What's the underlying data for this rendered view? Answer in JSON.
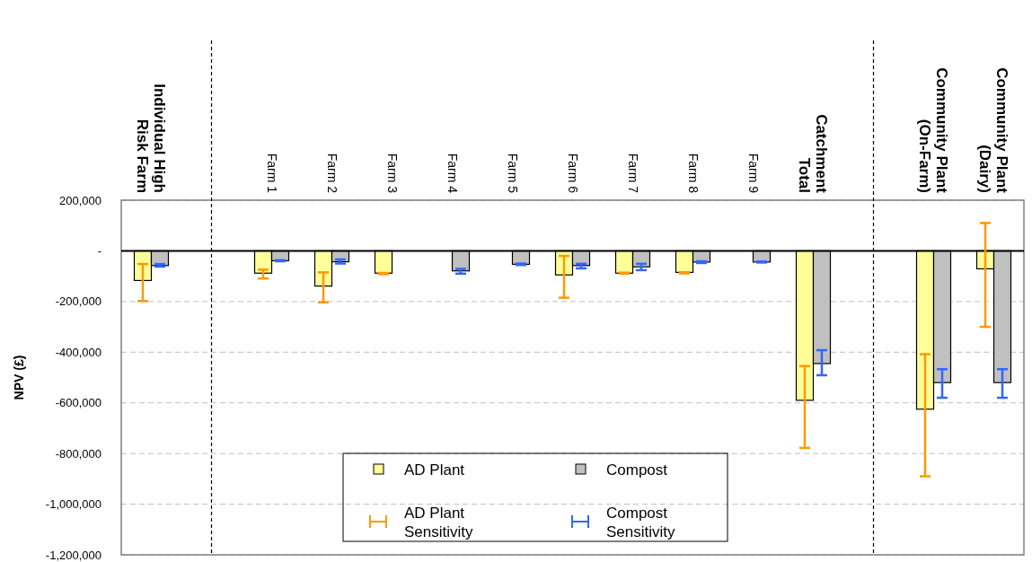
{
  "chart_data": {
    "type": "bar",
    "ylabel": "NPV (£)",
    "categories": [
      "Individual High Risk Farm",
      "Farm 1",
      "Farm 2",
      "Farm 3",
      "Farm 4",
      "Farm 5",
      "Farm 6",
      "Farm 7",
      "Farm 8",
      "Farm 9",
      "Catchment Total",
      "Community Plant (On-Farm)",
      "Community Plant (Dairy)"
    ],
    "series": [
      {
        "name": "AD Plant",
        "color": "#ffff99",
        "values": [
          -117000,
          -88000,
          -139000,
          -88000,
          0,
          0,
          -95000,
          -88000,
          -85000,
          0,
          -590000,
          -625000,
          -71000
        ],
        "errors": [
          [
            -198000,
            -52000
          ],
          [
            -109000,
            -74000
          ],
          [
            -203000,
            -85000
          ],
          [
            -92000,
            -87000
          ],
          null,
          null,
          [
            -185000,
            -20000
          ],
          [
            -90000,
            -86000
          ],
          [
            -89000,
            -84000
          ],
          null,
          [
            -778000,
            -455000
          ],
          [
            -890000,
            -408000
          ],
          [
            -300000,
            110000
          ]
        ]
      },
      {
        "name": "Compost",
        "color": "#c0c0c0",
        "values": [
          -58000,
          -39000,
          -43000,
          0,
          -79000,
          -53000,
          -58000,
          -63000,
          -44000,
          -44000,
          -445000,
          -520000,
          -520000
        ],
        "errors": [
          [
            -62000,
            -52000
          ],
          [
            -41000,
            -37000
          ],
          [
            -50000,
            -34000
          ],
          null,
          [
            -90000,
            -71000
          ],
          [
            -56000,
            -50000
          ],
          [
            -69000,
            -51000
          ],
          [
            -76000,
            -51000
          ],
          [
            -48000,
            -41000
          ],
          [
            -46000,
            -42000
          ],
          [
            -491000,
            -392000
          ],
          [
            -580000,
            -467000
          ],
          [
            -580000,
            -467000
          ]
        ]
      }
    ],
    "annotations": [
      "AD Plant Sensitivity",
      "Compost Sensitivity"
    ],
    "ylim": [
      -1200000,
      200000
    ],
    "yticks": [
      {
        "value": 200000,
        "label": "200,000"
      },
      {
        "value": 0,
        "label": "-"
      },
      {
        "value": -200000,
        "label": "-200,000"
      },
      {
        "value": -400000,
        "label": "-400,000"
      },
      {
        "value": -600000,
        "label": "-600,000"
      },
      {
        "value": -800000,
        "label": "-800,000"
      },
      {
        "value": -1000000,
        "label": "-1,000,000"
      },
      {
        "value": -1200000,
        "label": "-1,200,000"
      }
    ],
    "grid": "y",
    "legend": "bottom"
  }
}
